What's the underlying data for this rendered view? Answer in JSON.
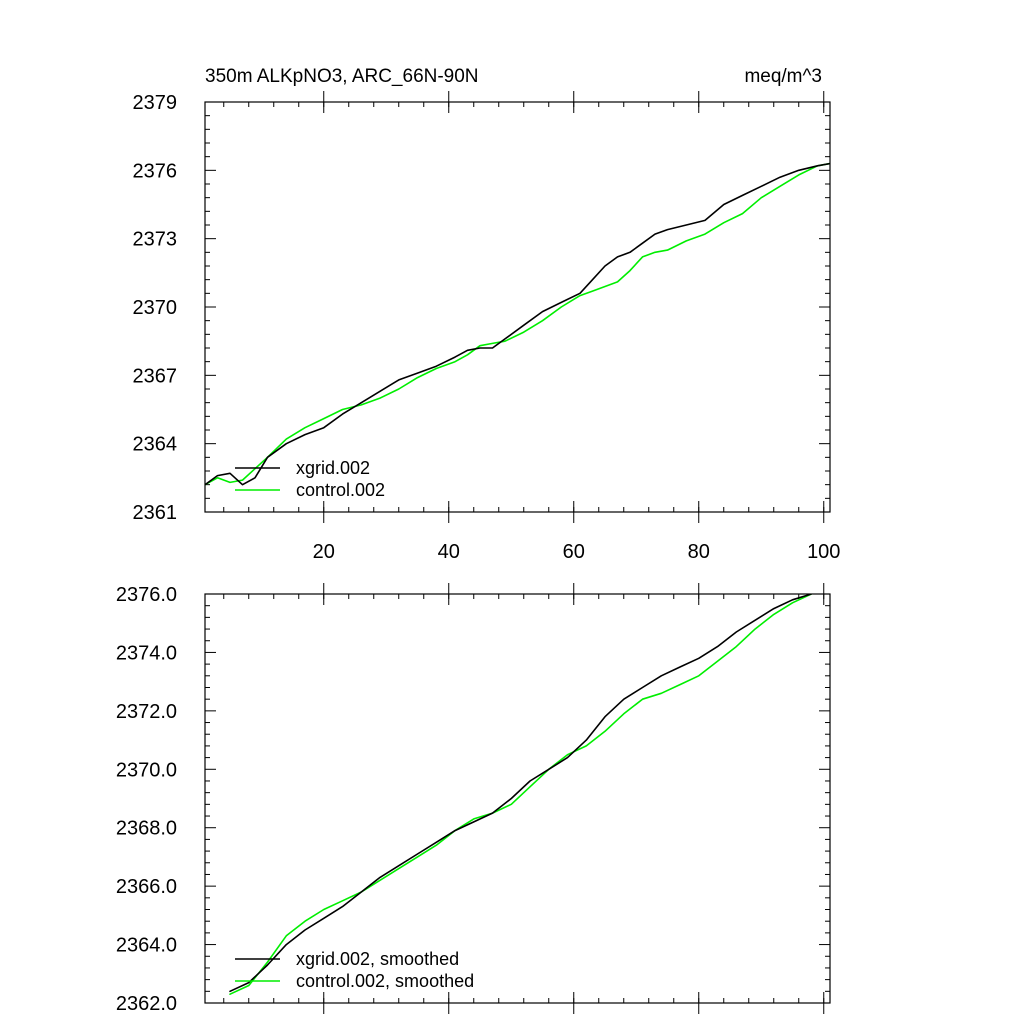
{
  "colors": {
    "xgrid": "#000000",
    "control": "#00ee00"
  },
  "chart_data": [
    {
      "type": "line",
      "title_left": "350m ALKpNO3, ARC_66N-90N",
      "title_right": "meq/m^3",
      "xlim": [
        1,
        101
      ],
      "ylim": [
        2361,
        2379
      ],
      "x_ticks": [
        20,
        40,
        60,
        80,
        100
      ],
      "x_tick_labels": [
        "20",
        "40",
        "60",
        "80",
        "100"
      ],
      "y_ticks": [
        2361,
        2364,
        2367,
        2370,
        2373,
        2376,
        2379
      ],
      "y_tick_labels": [
        "2361",
        "2364",
        "2367",
        "2370",
        "2373",
        "2376",
        "2379"
      ],
      "series": [
        {
          "name": "xgrid.002",
          "x": [
            1,
            3,
            5,
            7,
            9,
            11,
            14,
            17,
            20,
            23,
            26,
            29,
            32,
            35,
            38,
            41,
            43,
            45,
            47,
            49,
            52,
            55,
            58,
            61,
            63,
            65,
            67,
            69,
            71,
            73,
            75,
            78,
            81,
            84,
            87,
            90,
            93,
            96,
            99,
            101
          ],
          "values": [
            2362.2,
            2362.6,
            2362.7,
            2362.2,
            2362.5,
            2363.4,
            2364.0,
            2364.4,
            2364.7,
            2365.3,
            2365.8,
            2366.3,
            2366.8,
            2367.1,
            2367.4,
            2367.8,
            2368.1,
            2368.2,
            2368.2,
            2368.6,
            2369.2,
            2369.8,
            2370.2,
            2370.6,
            2371.2,
            2371.8,
            2372.2,
            2372.4,
            2372.8,
            2373.2,
            2373.4,
            2373.6,
            2373.8,
            2374.5,
            2374.9,
            2375.3,
            2375.7,
            2376.0,
            2376.2,
            2376.3
          ]
        },
        {
          "name": "control.002",
          "x": [
            1,
            3,
            5,
            7,
            9,
            11,
            14,
            17,
            20,
            23,
            26,
            29,
            32,
            35,
            38,
            41,
            43,
            45,
            47,
            49,
            52,
            55,
            58,
            61,
            63,
            65,
            67,
            69,
            71,
            73,
            75,
            78,
            81,
            84,
            87,
            90,
            93,
            96,
            99,
            101
          ],
          "values": [
            2362.2,
            2362.5,
            2362.3,
            2362.4,
            2362.9,
            2363.4,
            2364.2,
            2364.7,
            2365.1,
            2365.5,
            2365.7,
            2366.0,
            2366.4,
            2366.9,
            2367.3,
            2367.6,
            2367.9,
            2368.3,
            2368.4,
            2368.5,
            2368.9,
            2369.4,
            2370.0,
            2370.5,
            2370.7,
            2370.9,
            2371.1,
            2371.6,
            2372.2,
            2372.4,
            2372.5,
            2372.9,
            2373.2,
            2373.7,
            2374.1,
            2374.8,
            2375.3,
            2375.8,
            2376.2,
            2376.3
          ]
        }
      ],
      "legend": [
        "xgrid.002",
        "control.002"
      ],
      "legend_position": "bottom-left"
    },
    {
      "type": "line",
      "xlim": [
        1,
        101
      ],
      "ylim": [
        2362.0,
        2376.0
      ],
      "x_ticks": [
        20,
        40,
        60,
        80,
        100
      ],
      "x_tick_labels": [
        "",
        "",
        "",
        "",
        ""
      ],
      "y_ticks": [
        2362.0,
        2364.0,
        2366.0,
        2368.0,
        2370.0,
        2372.0,
        2374.0,
        2376.0
      ],
      "y_tick_labels": [
        "2362.0",
        "2364.0",
        "2366.0",
        "2368.0",
        "2370.0",
        "2372.0",
        "2374.0",
        "2376.0"
      ],
      "series": [
        {
          "name": "xgrid.002, smoothed",
          "x": [
            5,
            8,
            11,
            14,
            17,
            20,
            23,
            26,
            29,
            32,
            35,
            38,
            41,
            44,
            47,
            50,
            53,
            56,
            59,
            62,
            65,
            68,
            71,
            74,
            77,
            80,
            83,
            86,
            89,
            92,
            95,
            98
          ],
          "values": [
            2362.4,
            2362.7,
            2363.3,
            2364.0,
            2364.5,
            2364.9,
            2365.3,
            2365.8,
            2366.3,
            2366.7,
            2367.1,
            2367.5,
            2367.9,
            2368.2,
            2368.5,
            2369.0,
            2369.6,
            2370.0,
            2370.4,
            2371.0,
            2371.8,
            2372.4,
            2372.8,
            2373.2,
            2373.5,
            2373.8,
            2374.2,
            2374.7,
            2375.1,
            2375.5,
            2375.8,
            2376.0
          ]
        },
        {
          "name": "control.002, smoothed",
          "x": [
            5,
            8,
            11,
            14,
            17,
            20,
            23,
            26,
            29,
            32,
            35,
            38,
            41,
            44,
            47,
            50,
            53,
            56,
            59,
            62,
            65,
            68,
            71,
            74,
            77,
            80,
            83,
            86,
            89,
            92,
            95,
            98
          ],
          "values": [
            2362.3,
            2362.6,
            2363.4,
            2364.3,
            2364.8,
            2365.2,
            2365.5,
            2365.8,
            2366.2,
            2366.6,
            2367.0,
            2367.4,
            2367.9,
            2368.3,
            2368.5,
            2368.8,
            2369.4,
            2370.0,
            2370.5,
            2370.8,
            2371.3,
            2371.9,
            2372.4,
            2372.6,
            2372.9,
            2373.2,
            2373.7,
            2374.2,
            2374.8,
            2375.3,
            2375.7,
            2376.0
          ]
        }
      ],
      "legend": [
        "xgrid.002, smoothed",
        "control.002, smoothed"
      ],
      "legend_position": "bottom-left"
    }
  ]
}
